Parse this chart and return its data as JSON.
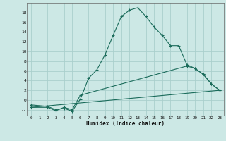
{
  "xlabel": "Humidex (Indice chaleur)",
  "ylabel": "",
  "bg_color": "#cce8e5",
  "grid_color": "#aacfcc",
  "line_color": "#1a6b5a",
  "xlim": [
    -0.5,
    23.5
  ],
  "ylim": [
    -3.2,
    20.0
  ],
  "yticks": [
    -2,
    0,
    2,
    4,
    6,
    8,
    10,
    12,
    14,
    16,
    18
  ],
  "xticks": [
    0,
    1,
    2,
    3,
    4,
    5,
    6,
    7,
    8,
    9,
    10,
    11,
    12,
    13,
    14,
    15,
    16,
    17,
    18,
    19,
    20,
    21,
    22,
    23
  ],
  "line1_x": [
    0,
    2,
    3,
    4,
    5,
    6,
    7,
    8,
    9,
    10,
    11,
    12,
    13,
    14,
    15,
    16,
    17,
    18,
    19,
    20,
    21,
    22,
    23
  ],
  "line1_y": [
    -1.0,
    -1.3,
    -2.0,
    -1.7,
    -2.3,
    0.2,
    4.5,
    6.2,
    9.3,
    13.3,
    17.2,
    18.5,
    19.0,
    17.2,
    15.0,
    13.3,
    11.2,
    11.2,
    7.3,
    6.5,
    5.3,
    3.3,
    2.0
  ],
  "line2_x": [
    0,
    2,
    3,
    4,
    5,
    6,
    19,
    20,
    21,
    22,
    23
  ],
  "line2_y": [
    -1.5,
    -1.5,
    -2.2,
    -1.5,
    -2.0,
    1.0,
    7.0,
    6.5,
    5.3,
    3.3,
    2.0
  ],
  "line3_x": [
    0,
    23
  ],
  "line3_y": [
    -1.5,
    2.0
  ]
}
